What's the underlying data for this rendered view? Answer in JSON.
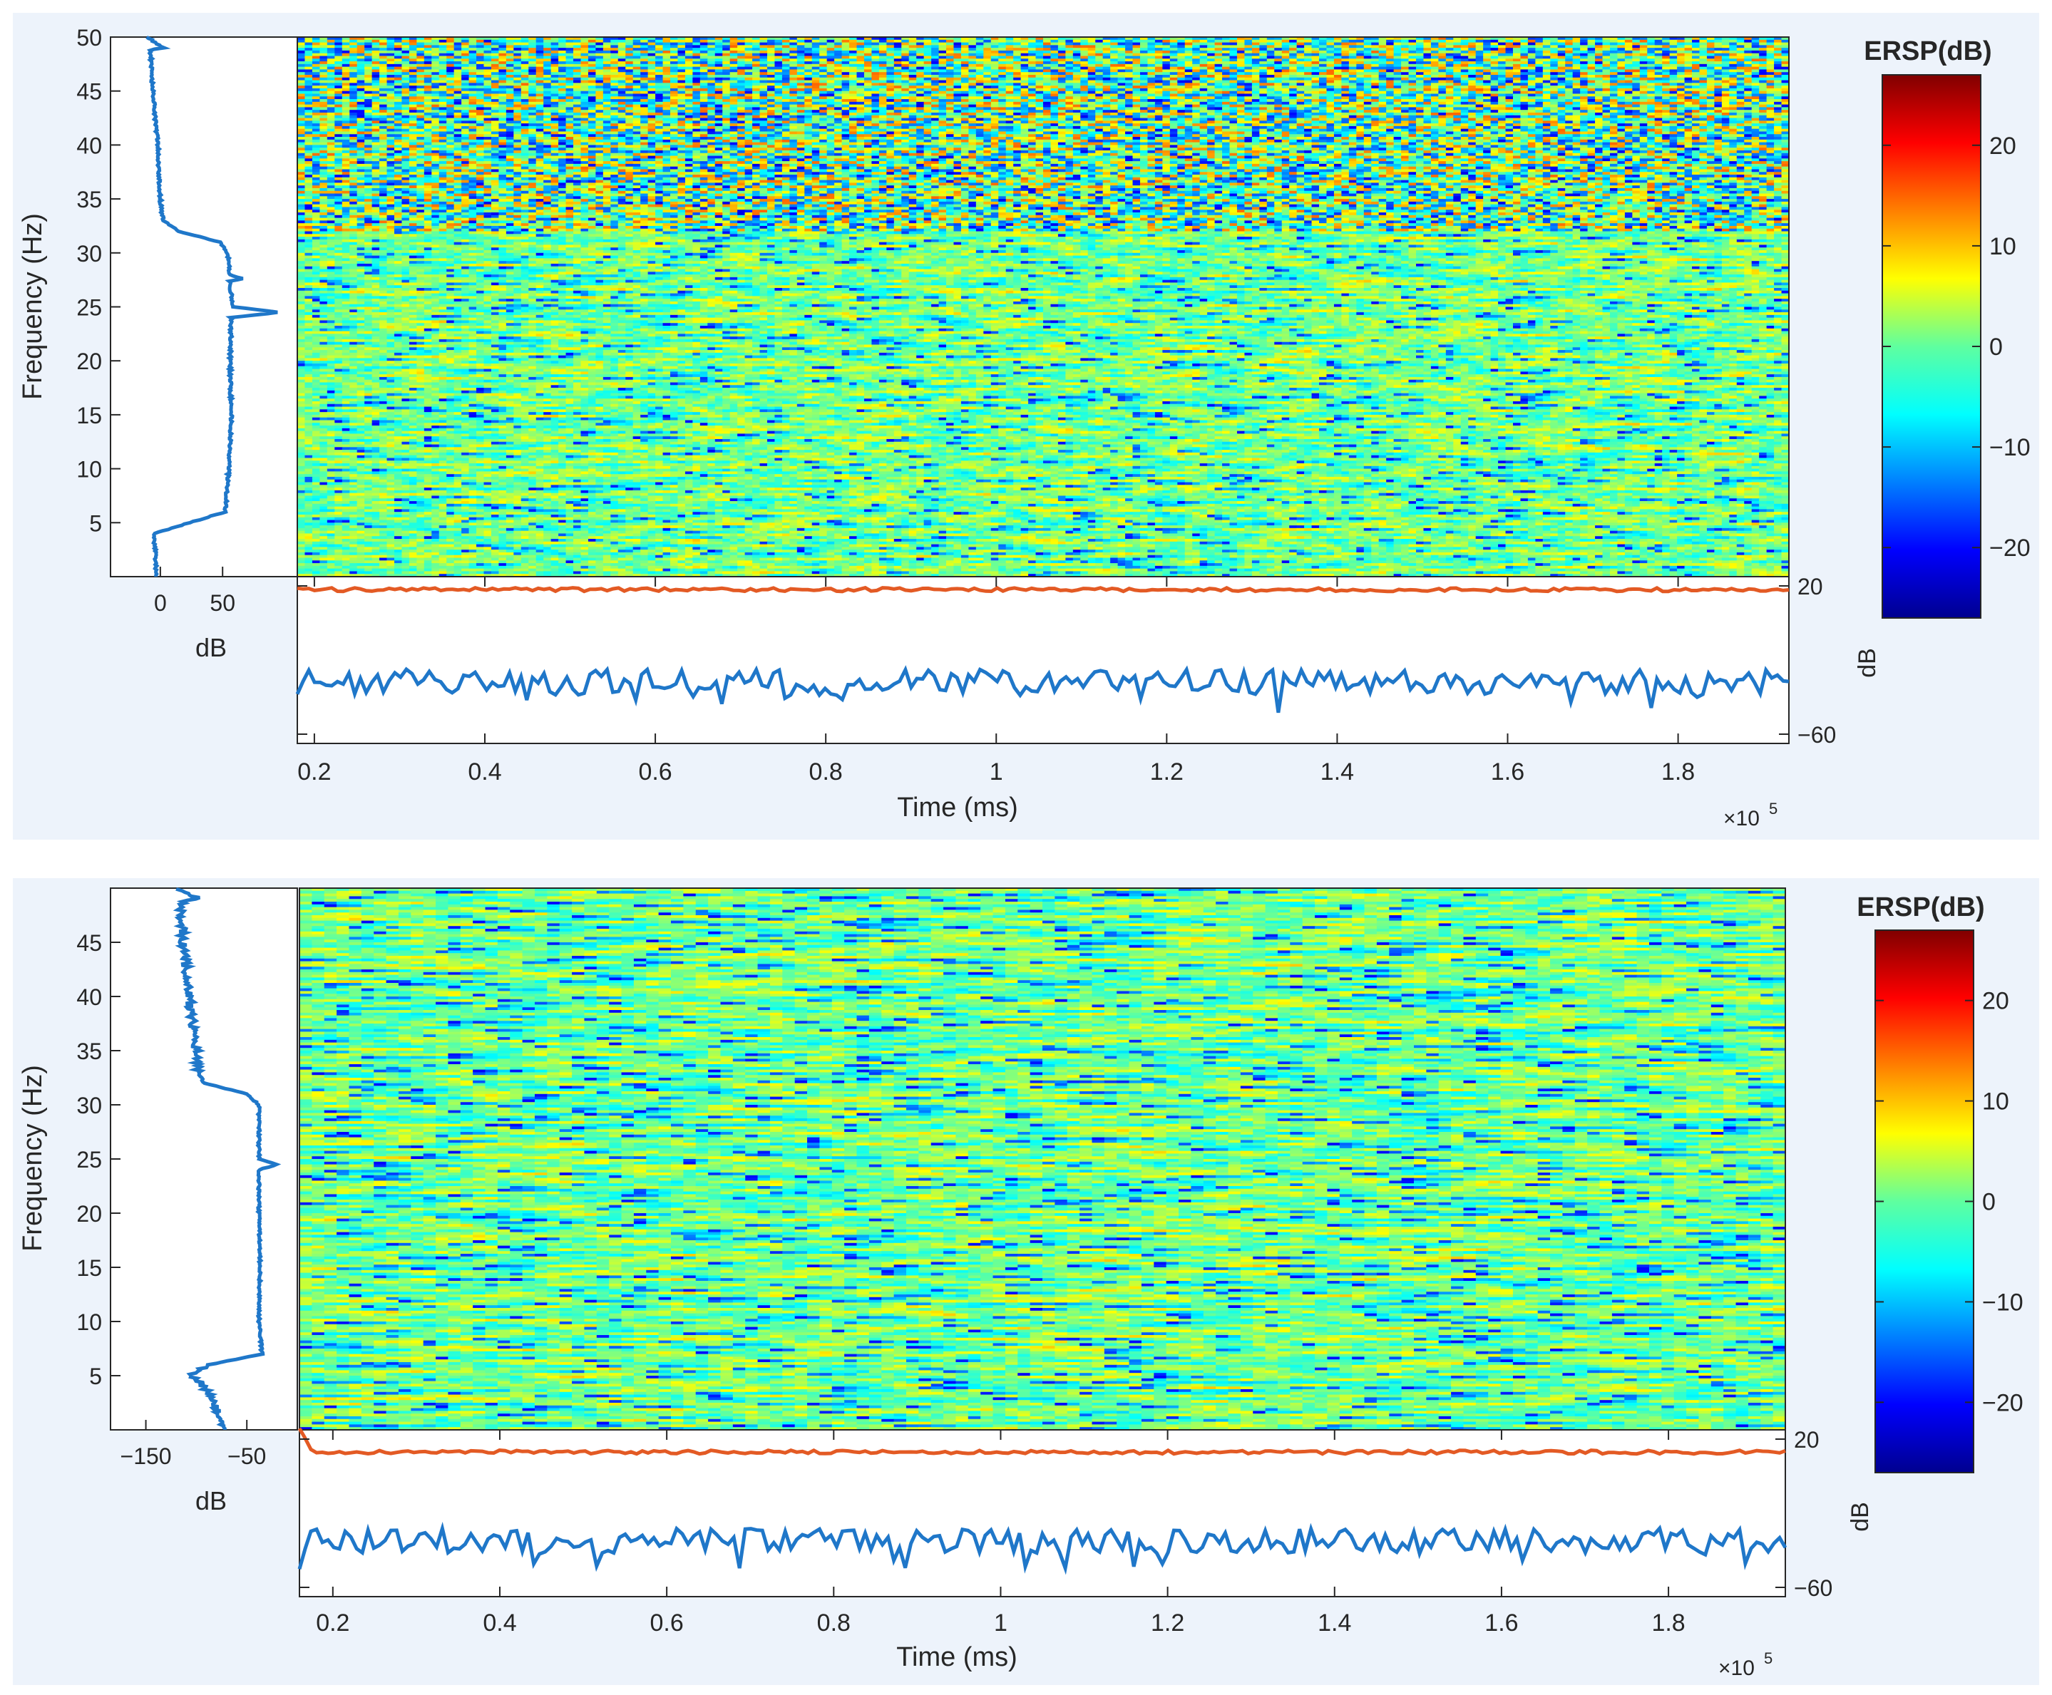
{
  "colors": {
    "panel_bg": "#edf3fb",
    "axis": "#262626",
    "spectrum_line": "#1f77c9",
    "erp_upper": "#e35a24",
    "erp_lower": "#1f77c9"
  },
  "chart_data": [
    {
      "type": "heatmap",
      "id": "panel1",
      "colormap": "jet",
      "ylabel": "Frequency (Hz)",
      "xlabel": "Time (ms)",
      "x_multiplier": "×10",
      "x_exponent": "5",
      "xlim": [
        0.18,
        1.93
      ],
      "ylim": [
        0,
        50
      ],
      "x_ticks": [
        0.2,
        0.4,
        0.6,
        0.8,
        1,
        1.2,
        1.4,
        1.6,
        1.8
      ],
      "x_tick_labels": [
        "0.2",
        "0.4",
        "0.6",
        "0.8",
        "1",
        "1.2",
        "1.4",
        "1.6",
        "1.8"
      ],
      "y_ticks": [
        5,
        10,
        15,
        20,
        25,
        30,
        35,
        40,
        45,
        50
      ],
      "y_tick_labels": [
        "5",
        "10",
        "15",
        "20",
        "25",
        "30",
        "35",
        "40",
        "45",
        "50"
      ],
      "grid": false,
      "colorbar": {
        "title": "ERSP(dB)",
        "range": [
          -27,
          27
        ],
        "ticks": [
          20,
          10,
          0,
          -10,
          -20
        ],
        "tick_labels": [
          "20",
          "10",
          "0",
          "−10",
          "−20"
        ]
      },
      "spectrum": {
        "xlabel": "dB",
        "xlim": [
          -40,
          110
        ],
        "ticks": [
          0,
          50
        ],
        "tick_labels": [
          "0",
          "50"
        ],
        "points": [
          [
            0,
            -3
          ],
          [
            4,
            -5
          ],
          [
            6,
            52
          ],
          [
            10,
            55
          ],
          [
            15,
            57
          ],
          [
            20,
            56
          ],
          [
            24,
            57
          ],
          [
            24.5,
            95
          ],
          [
            25,
            58
          ],
          [
            27.4,
            56
          ],
          [
            27.6,
            66
          ],
          [
            28,
            56
          ],
          [
            30,
            54
          ],
          [
            31,
            48
          ],
          [
            32,
            15
          ],
          [
            33,
            2
          ],
          [
            35,
            0
          ],
          [
            40,
            -2
          ],
          [
            45,
            -6
          ],
          [
            48.8,
            -8
          ],
          [
            49,
            2
          ],
          [
            50,
            -10
          ]
        ]
      },
      "erp": {
        "ylabel": "dB",
        "ylim": [
          -65,
          25
        ],
        "ticks": [
          20,
          -60
        ],
        "tick_labels": [
          "20",
          "−60"
        ],
        "upper_level": 18,
        "lower_level": -32
      }
    },
    {
      "type": "heatmap",
      "id": "panel2",
      "colormap": "jet",
      "ylabel": "Frequency (Hz)",
      "xlabel": "Time (ms)",
      "x_multiplier": "×10",
      "x_exponent": "5",
      "xlim": [
        0.16,
        1.94
      ],
      "ylim": [
        0,
        50
      ],
      "x_ticks": [
        0.2,
        0.4,
        0.6,
        0.8,
        1,
        1.2,
        1.4,
        1.6,
        1.8
      ],
      "x_tick_labels": [
        "0.2",
        "0.4",
        "0.6",
        "0.8",
        "1",
        "1.2",
        "1.4",
        "1.6",
        "1.8"
      ],
      "y_ticks": [
        5,
        10,
        15,
        20,
        25,
        30,
        35,
        40,
        45
      ],
      "y_tick_labels": [
        "5",
        "10",
        "15",
        "20",
        "25",
        "30",
        "35",
        "40",
        "45"
      ],
      "grid": false,
      "colorbar": {
        "title": "ERSP(dB)",
        "range": [
          -27,
          27
        ],
        "ticks": [
          20,
          10,
          0,
          -10,
          -20
        ],
        "tick_labels": [
          "20",
          "10",
          "0",
          "−10",
          "−20"
        ]
      },
      "spectrum": {
        "xlabel": "dB",
        "xlim": [
          -185,
          0
        ],
        "ticks": [
          -150,
          -50
        ],
        "tick_labels": [
          "−150",
          "−50"
        ],
        "points": [
          [
            0,
            -70
          ],
          [
            2,
            -80
          ],
          [
            4,
            -92
          ],
          [
            5,
            -105
          ],
          [
            6,
            -88
          ],
          [
            7,
            -35
          ],
          [
            10,
            -38
          ],
          [
            15,
            -37
          ],
          [
            20,
            -38
          ],
          [
            24,
            -38
          ],
          [
            24.5,
            -20
          ],
          [
            25,
            -38
          ],
          [
            30,
            -38
          ],
          [
            31,
            -50
          ],
          [
            32,
            -92
          ],
          [
            33,
            -98
          ],
          [
            35,
            -100
          ],
          [
            40,
            -107
          ],
          [
            45,
            -113
          ],
          [
            48.8,
            -115
          ],
          [
            49,
            -98
          ],
          [
            50,
            -118
          ]
        ]
      },
      "erp": {
        "ylabel": "dB",
        "ylim": [
          -65,
          25
        ],
        "ticks": [
          20,
          -60
        ],
        "tick_labels": [
          "20",
          "−60"
        ],
        "upper_level": 13,
        "lower_level": -35
      }
    }
  ]
}
